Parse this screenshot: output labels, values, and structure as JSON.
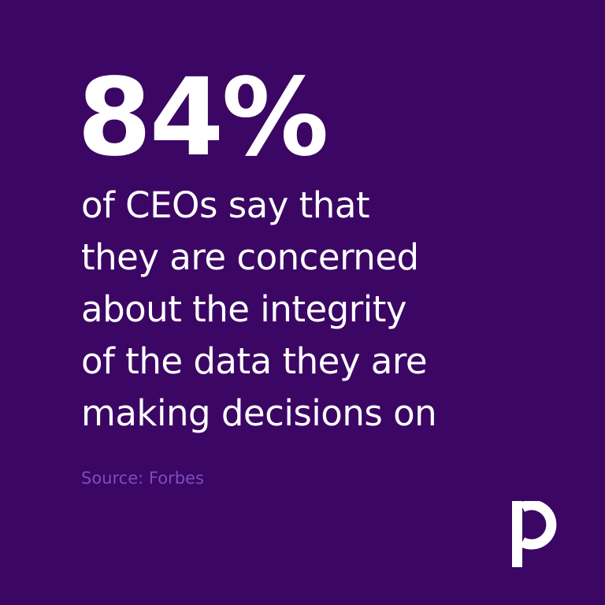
{
  "brand": {
    "background_color": "#3b0664",
    "text_color": "#ffffff",
    "source_color": "#7a4ec0",
    "logo_icon": "p-logo-icon"
  },
  "headline": {
    "stat": "84%",
    "lines": [
      "of CEOs say that",
      "they are concerned",
      "about the integrity",
      "of the data they are",
      "making decisions on"
    ]
  },
  "source": {
    "text": "Source: Forbes"
  }
}
